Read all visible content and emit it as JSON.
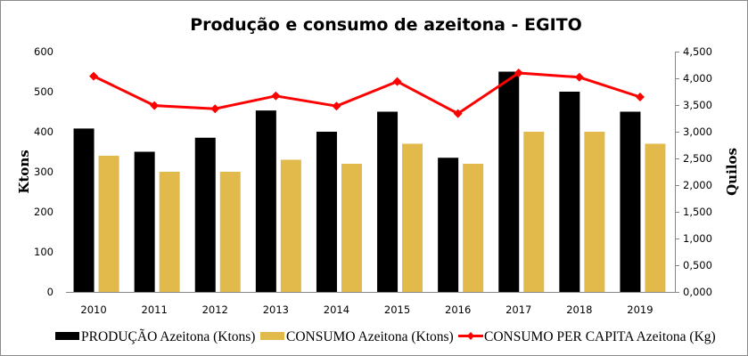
{
  "chart_data": {
    "type": "bar",
    "title": "Produção e consumo de azeitona - EGITO",
    "xlabel": "",
    "ylabel": "Ktons",
    "y2label": "Quilos",
    "categories": [
      "2010",
      "2011",
      "2012",
      "2013",
      "2014",
      "2015",
      "2016",
      "2017",
      "2018",
      "2019"
    ],
    "ylim": [
      0,
      600
    ],
    "yticks": [
      "0",
      "100",
      "200",
      "300",
      "400",
      "500",
      "600"
    ],
    "y2lim": [
      0,
      4.5
    ],
    "y2ticks": [
      "0,000",
      "0,500",
      "1,000",
      "1,500",
      "2,000",
      "2,500",
      "3,000",
      "3,500",
      "4,000",
      "4,500"
    ],
    "grid": false,
    "legend_position": "bottom",
    "series": [
      {
        "name": "PRODUÇÃO Azeitona (Ktons)",
        "type": "bar",
        "axis": "left",
        "color": "#000000",
        "values": [
          408,
          350,
          385,
          453,
          400,
          450,
          335,
          550,
          500,
          450
        ]
      },
      {
        "name": "CONSUMO Azeitona (Ktons)",
        "type": "bar",
        "axis": "left",
        "color": "#e1ba4b",
        "values": [
          340,
          300,
          300,
          330,
          320,
          370,
          320,
          400,
          400,
          370
        ]
      },
      {
        "name": "CONSUMO PER CAPITA Azeitona (Kg)",
        "type": "line",
        "axis": "right",
        "color": "#ff0000",
        "marker": "diamond",
        "values": [
          4.04,
          3.49,
          3.43,
          3.67,
          3.48,
          3.94,
          3.34,
          4.1,
          4.02,
          3.65
        ]
      }
    ]
  }
}
